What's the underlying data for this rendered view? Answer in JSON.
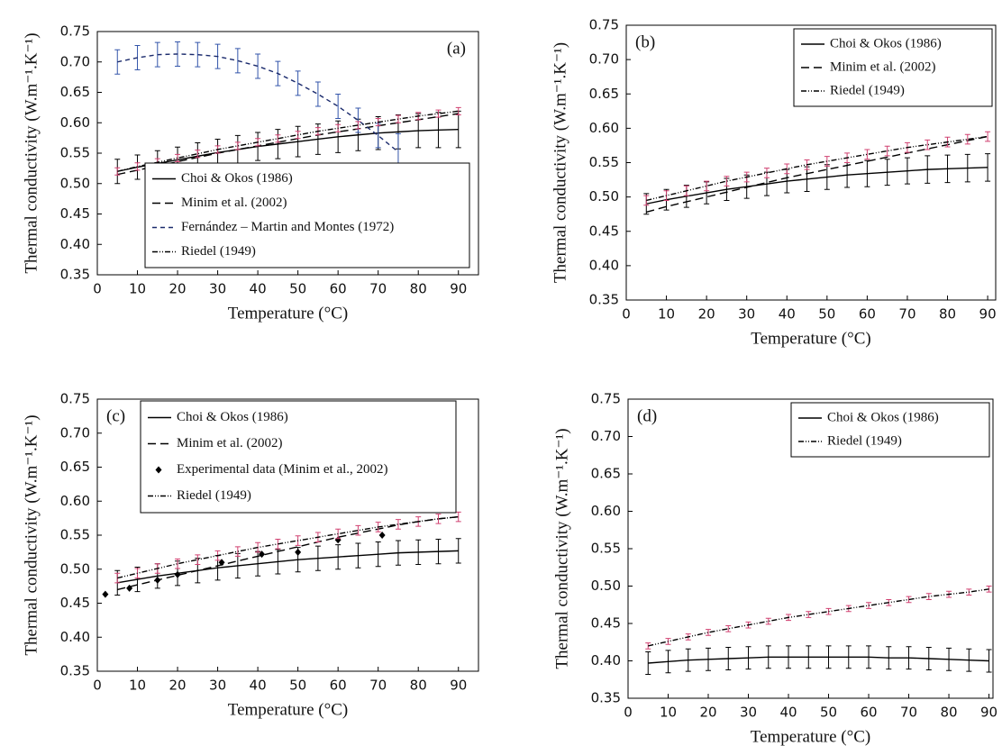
{
  "chart_data": [
    {
      "type": "line",
      "panel_label": "(a)",
      "label_position": "upper right",
      "legend": "lower right",
      "xlabel": "Temperature (°C)",
      "ylabel": "Thermal conductivity (W.m⁻¹.K⁻¹)",
      "x": [
        5,
        10,
        15,
        20,
        25,
        30,
        35,
        40,
        45,
        50,
        55,
        60,
        65,
        70,
        75,
        80,
        85,
        90
      ],
      "xlim": [
        0,
        95
      ],
      "xticks": [
        0,
        10,
        20,
        30,
        40,
        50,
        60,
        70,
        80,
        90
      ],
      "ylim": [
        0.35,
        0.75
      ],
      "yticks": [
        0.35,
        {
          "value": 0.4,
          "label": "0.40"
        },
        0.45,
        {
          "value": 0.5,
          "label": "0.50"
        },
        0.55,
        {
          "value": 0.6,
          "label": "0.60"
        },
        0.65,
        {
          "value": 0.7,
          "label": "0.70"
        },
        0.75
      ],
      "series": [
        {
          "name": "Choi & Okos (1986)",
          "color": "#000000",
          "dash": "solid",
          "error_color": "#000000",
          "values": [
            0.52,
            0.527,
            0.533,
            0.539,
            0.545,
            0.551,
            0.556,
            0.561,
            0.565,
            0.569,
            0.573,
            0.577,
            0.58,
            0.583,
            0.585,
            0.587,
            0.588,
            0.589
          ],
          "errors": [
            0.02,
            0.02,
            0.021,
            0.021,
            0.022,
            0.022,
            0.023,
            0.023,
            0.024,
            0.025,
            0.025,
            0.026,
            0.026,
            0.027,
            0.028,
            0.028,
            0.029,
            0.03
          ]
        },
        {
          "name": "Minim et al. (2002)",
          "color": "#000000",
          "dash": "dashed",
          "values": [
            0.515,
            0.522,
            0.529,
            0.536,
            0.543,
            0.55,
            0.556,
            0.562,
            0.568,
            0.574,
            0.58,
            0.585,
            0.59,
            0.595,
            0.6,
            0.605,
            0.61,
            0.615
          ]
        },
        {
          "name": "Fernández – Martin and Montes (1972)",
          "color": "#1a2a6c",
          "dash": "shortdash",
          "error_color": "#3355aa",
          "values": [
            0.7,
            0.707,
            0.712,
            0.713,
            0.712,
            0.709,
            0.702,
            0.693,
            0.681,
            0.665,
            0.647,
            0.627,
            0.604,
            0.579,
            0.552,
            null,
            null,
            null
          ],
          "errors": [
            0.02,
            0.02,
            0.02,
            0.02,
            0.02,
            0.02,
            0.02,
            0.02,
            0.02,
            0.02,
            0.02,
            0.02,
            0.02,
            0.02,
            0.03,
            null,
            null,
            null
          ]
        },
        {
          "name": "Riedel (1949)",
          "color": "#000000",
          "dash": "dotdash",
          "error_color": "#d04070",
          "values": [
            0.52,
            0.528,
            0.535,
            0.542,
            0.549,
            0.556,
            0.562,
            0.568,
            0.574,
            0.58,
            0.586,
            0.591,
            0.596,
            0.601,
            0.606,
            0.611,
            0.615,
            0.619
          ],
          "errors": [
            0.006,
            0.006,
            0.006,
            0.006,
            0.006,
            0.006,
            0.006,
            0.006,
            0.006,
            0.006,
            0.006,
            0.006,
            0.006,
            0.006,
            0.006,
            0.006,
            0.006,
            0.006
          ]
        }
      ]
    },
    {
      "type": "line",
      "panel_label": "(b)",
      "label_position": "upper left",
      "legend": "upper right",
      "xlabel": "Temperature (°C)",
      "ylabel": "Thermal conductivity (W.m⁻¹.K⁻¹)",
      "x": [
        5,
        10,
        15,
        20,
        25,
        30,
        35,
        40,
        45,
        50,
        55,
        60,
        65,
        70,
        75,
        80,
        85,
        90
      ],
      "xlim": [
        0,
        92
      ],
      "xticks": [
        0,
        10,
        20,
        30,
        40,
        50,
        60,
        70,
        80,
        90
      ],
      "ylim": [
        0.35,
        0.75
      ],
      "yticks": [
        0.35,
        {
          "value": 0.4,
          "label": "0.40"
        },
        0.45,
        {
          "value": 0.5,
          "label": "0.50"
        },
        0.55,
        {
          "value": 0.6,
          "label": "0.60"
        },
        0.65,
        {
          "value": 0.7,
          "label": "0.70"
        },
        0.75
      ],
      "series": [
        {
          "name": "Choi & Okos (1986)",
          "color": "#000000",
          "dash": "solid",
          "error_color": "#000000",
          "values": [
            0.49,
            0.496,
            0.501,
            0.506,
            0.511,
            0.515,
            0.519,
            0.523,
            0.526,
            0.529,
            0.532,
            0.534,
            0.536,
            0.538,
            0.54,
            0.541,
            0.542,
            0.543
          ],
          "errors": [
            0.015,
            0.015,
            0.016,
            0.016,
            0.016,
            0.017,
            0.017,
            0.017,
            0.018,
            0.018,
            0.018,
            0.019,
            0.019,
            0.019,
            0.02,
            0.02,
            0.02,
            0.02
          ]
        },
        {
          "name": "Minim et al. (2002)",
          "color": "#000000",
          "dash": "dashed",
          "values": [
            0.478,
            0.486,
            0.493,
            0.5,
            0.507,
            0.514,
            0.521,
            0.528,
            0.534,
            0.54,
            0.546,
            0.552,
            0.558,
            0.564,
            0.57,
            0.576,
            0.582,
            0.588
          ]
        },
        {
          "name": "Riedel (1949)",
          "color": "#000000",
          "dash": "dotdash",
          "error_color": "#d04070",
          "values": [
            0.495,
            0.502,
            0.509,
            0.516,
            0.523,
            0.529,
            0.535,
            0.541,
            0.547,
            0.552,
            0.557,
            0.562,
            0.567,
            0.572,
            0.576,
            0.58,
            0.584,
            0.588
          ],
          "errors": [
            0.007,
            0.007,
            0.007,
            0.007,
            0.007,
            0.007,
            0.007,
            0.007,
            0.007,
            0.007,
            0.007,
            0.007,
            0.007,
            0.007,
            0.007,
            0.007,
            0.007,
            0.007
          ]
        }
      ]
    },
    {
      "type": "line",
      "panel_label": "(c)",
      "label_position": "upper left",
      "legend": "upper center",
      "xlabel": "Temperature (°C)",
      "ylabel": "Thermal conductivity (W.m⁻¹.K⁻¹)",
      "x": [
        5,
        10,
        15,
        20,
        25,
        30,
        35,
        40,
        45,
        50,
        55,
        60,
        65,
        70,
        75,
        80,
        85,
        90
      ],
      "xlim": [
        0,
        95
      ],
      "xticks": [
        0,
        10,
        20,
        30,
        40,
        50,
        60,
        70,
        80,
        90
      ],
      "ylim": [
        0.35,
        0.75
      ],
      "yticks": [
        0.35,
        {
          "value": 0.4,
          "label": "0.40"
        },
        0.45,
        {
          "value": 0.5,
          "label": "0.50"
        },
        0.55,
        {
          "value": 0.6,
          "label": "0.60"
        },
        0.65,
        {
          "value": 0.7,
          "label": "0.70"
        },
        0.75
      ],
      "series": [
        {
          "name": "Choi & Okos (1986)",
          "color": "#000000",
          "dash": "solid",
          "error_color": "#000000",
          "values": [
            0.48,
            0.485,
            0.49,
            0.494,
            0.498,
            0.502,
            0.505,
            0.508,
            0.511,
            0.514,
            0.516,
            0.518,
            0.52,
            0.522,
            0.524,
            0.525,
            0.526,
            0.527
          ],
          "errors": [
            0.018,
            0.018,
            0.018,
            0.018,
            0.018,
            0.018,
            0.018,
            0.018,
            0.018,
            0.018,
            0.018,
            0.018,
            0.018,
            0.018,
            0.018,
            0.018,
            0.018,
            0.018
          ]
        },
        {
          "name": "Minim et al. (2002)",
          "color": "#000000",
          "dash": "dashed",
          "values": [
            0.47,
            0.477,
            0.484,
            0.491,
            0.498,
            0.505,
            0.512,
            0.519,
            0.526,
            0.533,
            0.54,
            0.547,
            0.553,
            0.559,
            0.565,
            0.57,
            0.574,
            0.577
          ]
        },
        {
          "name": "Experimental data (Minim et al., 2002)",
          "color": "#000000",
          "marker": "diamond",
          "x": [
            2,
            8,
            15,
            20,
            31,
            41,
            50,
            60,
            71
          ],
          "values": [
            0.463,
            0.472,
            0.484,
            0.492,
            0.51,
            0.522,
            0.525,
            0.543,
            0.55
          ]
        },
        {
          "name": "Riedel (1949)",
          "color": "#000000",
          "dash": "dotdash",
          "error_color": "#d04070",
          "values": [
            0.487,
            0.494,
            0.501,
            0.508,
            0.514,
            0.52,
            0.526,
            0.532,
            0.537,
            0.542,
            0.547,
            0.552,
            0.557,
            0.562,
            0.566,
            0.57,
            0.574,
            0.577
          ],
          "errors": [
            0.007,
            0.007,
            0.007,
            0.007,
            0.007,
            0.007,
            0.007,
            0.007,
            0.007,
            0.007,
            0.007,
            0.007,
            0.007,
            0.007,
            0.007,
            0.007,
            0.007,
            0.007
          ]
        }
      ]
    },
    {
      "type": "line",
      "panel_label": "(d)",
      "label_position": "upper left",
      "legend": "upper right",
      "xlabel": "Temperature (°C)",
      "ylabel": "Thermal conductivity (W.m⁻¹.K⁻¹)",
      "x": [
        5,
        10,
        15,
        20,
        25,
        30,
        35,
        40,
        45,
        50,
        55,
        60,
        65,
        70,
        75,
        80,
        85,
        90
      ],
      "xlim": [
        0,
        91
      ],
      "xticks": [
        0,
        10,
        20,
        30,
        40,
        50,
        60,
        70,
        80,
        90
      ],
      "ylim": [
        0.35,
        0.75
      ],
      "yticks": [
        0.35,
        {
          "value": 0.4,
          "label": "0.40"
        },
        0.45,
        {
          "value": 0.5,
          "label": "0.50"
        },
        0.55,
        {
          "value": 0.6,
          "label": "0.60"
        },
        0.65,
        {
          "value": 0.7,
          "label": "0.70"
        },
        0.75
      ],
      "series": [
        {
          "name": "Choi & Okos (1986)",
          "color": "#000000",
          "dash": "solid",
          "error_color": "#000000",
          "values": [
            0.397,
            0.399,
            0.401,
            0.402,
            0.403,
            0.404,
            0.405,
            0.405,
            0.405,
            0.405,
            0.405,
            0.405,
            0.404,
            0.404,
            0.403,
            0.402,
            0.401,
            0.4
          ],
          "errors": [
            0.015,
            0.015,
            0.015,
            0.015,
            0.015,
            0.015,
            0.015,
            0.015,
            0.015,
            0.015,
            0.015,
            0.015,
            0.015,
            0.015,
            0.015,
            0.015,
            0.015,
            0.015
          ]
        },
        {
          "name": "Riedel (1949)",
          "color": "#000000",
          "dash": "dotdash",
          "error_color": "#d04070",
          "values": [
            0.42,
            0.426,
            0.432,
            0.438,
            0.443,
            0.448,
            0.453,
            0.458,
            0.462,
            0.466,
            0.47,
            0.474,
            0.478,
            0.482,
            0.486,
            0.489,
            0.492,
            0.496
          ],
          "errors": [
            0.004,
            0.004,
            0.004,
            0.004,
            0.004,
            0.004,
            0.004,
            0.004,
            0.004,
            0.004,
            0.004,
            0.004,
            0.004,
            0.004,
            0.004,
            0.004,
            0.004,
            0.004
          ]
        }
      ]
    }
  ]
}
